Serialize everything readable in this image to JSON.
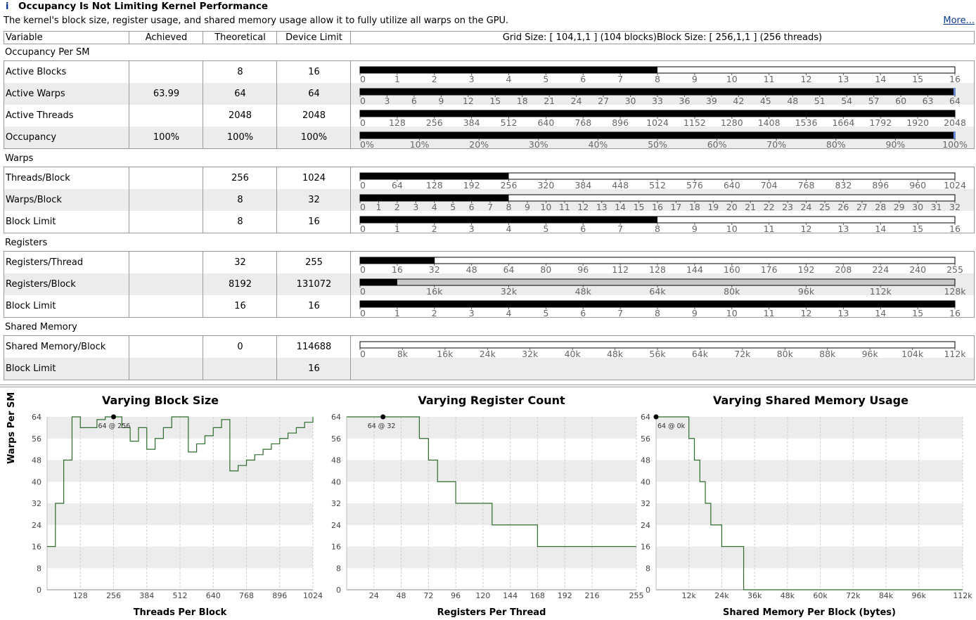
{
  "header": {
    "title": "Occupancy Is Not Limiting Kernel Performance",
    "description": "The kernel's block size, register usage, and shared memory usage allow it to fully utilize all warps on the GPU.",
    "more_link": "More...",
    "info_icon": "i"
  },
  "table_header": {
    "variable": "Variable",
    "achieved": "Achieved",
    "theoretical": "Theoretical",
    "device_limit": "Device Limit",
    "grid_info": "Grid Size: [ 104,1,1 ] (104 blocks)Block Size: [ 256,1,1 ] (256 threads)"
  },
  "sections": [
    {
      "title": "Occupancy Per SM",
      "rows": [
        {
          "variable": "Active Blocks",
          "achieved": "",
          "theoretical": "8",
          "device_limit": "16",
          "fill": 0.5,
          "bar_style": "plain",
          "ticks": [
            "0",
            "1",
            "2",
            "3",
            "4",
            "5",
            "6",
            "7",
            "8",
            "9",
            "10",
            "11",
            "12",
            "13",
            "14",
            "15",
            "16"
          ]
        },
        {
          "variable": "Active Warps",
          "achieved": "63.99",
          "theoretical": "64",
          "device_limit": "64",
          "fill": 1.0,
          "bar_style": "marker",
          "ticks": [
            "0",
            "3",
            "6",
            "9",
            "12",
            "15",
            "18",
            "21",
            "24",
            "27",
            "30",
            "33",
            "36",
            "39",
            "42",
            "45",
            "48",
            "51",
            "54",
            "57",
            "60",
            "63",
            "64"
          ]
        },
        {
          "variable": "Active Threads",
          "achieved": "",
          "theoretical": "2048",
          "device_limit": "2048",
          "fill": 1.0,
          "bar_style": "plain",
          "ticks": [
            "0",
            "128",
            "256",
            "384",
            "512",
            "640",
            "768",
            "896",
            "1024",
            "1152",
            "1280",
            "1408",
            "1536",
            "1664",
            "1792",
            "1920",
            "2048"
          ]
        },
        {
          "variable": "Occupancy",
          "achieved": "100%",
          "theoretical": "100%",
          "device_limit": "100%",
          "fill": 1.0,
          "bar_style": "marker",
          "ticks": [
            "0%",
            "10%",
            "20%",
            "30%",
            "40%",
            "50%",
            "60%",
            "70%",
            "80%",
            "90%",
            "100%"
          ]
        }
      ]
    },
    {
      "title": "Warps",
      "rows": [
        {
          "variable": "Threads/Block",
          "achieved": "",
          "theoretical": "256",
          "device_limit": "1024",
          "fill": 0.25,
          "bar_style": "plain",
          "ticks": [
            "0",
            "64",
            "128",
            "192",
            "256",
            "320",
            "384",
            "448",
            "512",
            "576",
            "640",
            "704",
            "768",
            "832",
            "896",
            "960",
            "1024"
          ]
        },
        {
          "variable": "Warps/Block",
          "achieved": "",
          "theoretical": "8",
          "device_limit": "32",
          "fill": 0.25,
          "bar_style": "plain",
          "ticks": [
            "0",
            "1",
            "2",
            "3",
            "4",
            "5",
            "6",
            "7",
            "8",
            "9",
            "10",
            "11",
            "12",
            "13",
            "14",
            "15",
            "16",
            "17",
            "18",
            "19",
            "20",
            "21",
            "22",
            "23",
            "24",
            "25",
            "26",
            "27",
            "28",
            "29",
            "30",
            "31",
            "32"
          ]
        },
        {
          "variable": "Block Limit",
          "achieved": "",
          "theoretical": "8",
          "device_limit": "16",
          "fill": 0.5,
          "bar_style": "plain",
          "ticks": [
            "0",
            "1",
            "2",
            "3",
            "4",
            "5",
            "6",
            "7",
            "8",
            "9",
            "10",
            "11",
            "12",
            "13",
            "14",
            "15",
            "16"
          ]
        }
      ]
    },
    {
      "title": "Registers",
      "rows": [
        {
          "variable": "Registers/Thread",
          "achieved": "",
          "theoretical": "32",
          "device_limit": "255",
          "fill": 0.1255,
          "bar_style": "plain",
          "ticks": [
            "0",
            "16",
            "32",
            "48",
            "64",
            "80",
            "96",
            "112",
            "128",
            "144",
            "160",
            "176",
            "192",
            "208",
            "224",
            "240",
            "255"
          ]
        },
        {
          "variable": "Registers/Block",
          "achieved": "",
          "theoretical": "8192",
          "device_limit": "131072",
          "fill": 0.0625,
          "bar_style": "grey",
          "ticks": [
            "0",
            "16k",
            "32k",
            "48k",
            "64k",
            "80k",
            "96k",
            "112k",
            "128k"
          ]
        },
        {
          "variable": "Block Limit",
          "achieved": "",
          "theoretical": "16",
          "device_limit": "16",
          "fill": 1.0,
          "bar_style": "plain",
          "ticks": [
            "0",
            "1",
            "2",
            "3",
            "4",
            "5",
            "6",
            "7",
            "8",
            "9",
            "10",
            "11",
            "12",
            "13",
            "14",
            "15",
            "16"
          ]
        }
      ]
    },
    {
      "title": "Shared Memory",
      "rows": [
        {
          "variable": "Shared Memory/Block",
          "achieved": "",
          "theoretical": "0",
          "device_limit": "114688",
          "fill": 0.0,
          "bar_style": "plain",
          "ticks": [
            "0",
            "8k",
            "16k",
            "24k",
            "32k",
            "40k",
            "48k",
            "56k",
            "64k",
            "72k",
            "80k",
            "88k",
            "96k",
            "104k",
            "112k"
          ]
        },
        {
          "variable": "Block Limit",
          "achieved": "",
          "theoretical": "",
          "device_limit": "16",
          "fill": null,
          "bar_style": "none",
          "ticks": []
        }
      ]
    }
  ],
  "chart_data": [
    {
      "type": "line",
      "title": "Varying Block Size",
      "xlabel": "Threads Per Block",
      "ylabel": "Warps Per SM",
      "xlim": [
        0,
        1024
      ],
      "ylim": [
        0,
        64
      ],
      "yticks": [
        "0",
        "8",
        "16",
        "24",
        "32",
        "40",
        "48",
        "56",
        "64"
      ],
      "xticks": [
        128,
        256,
        384,
        512,
        640,
        768,
        896,
        1024
      ],
      "xtick_labels": [
        "128",
        "256",
        "384",
        "512",
        "640",
        "768",
        "896",
        "1024"
      ],
      "annotation": "64 @ 256",
      "highlight": [
        256,
        64
      ],
      "x": [
        0,
        32,
        64,
        96,
        128,
        160,
        192,
        224,
        256,
        288,
        320,
        352,
        384,
        416,
        448,
        480,
        512,
        544,
        576,
        608,
        640,
        672,
        704,
        736,
        768,
        800,
        832,
        864,
        896,
        928,
        960,
        992,
        1024
      ],
      "y": [
        16,
        32,
        48,
        64,
        60,
        60,
        63,
        64,
        64,
        60,
        55,
        60,
        52,
        56,
        60,
        64,
        64,
        51,
        54,
        57,
        60,
        63,
        44,
        46,
        48,
        50,
        52,
        54,
        56,
        58,
        60,
        62,
        64
      ]
    },
    {
      "type": "line",
      "title": "Varying Register Count",
      "xlabel": "Registers Per Thread",
      "ylabel": "Warps Per SM",
      "xlim": [
        0,
        255
      ],
      "ylim": [
        0,
        64
      ],
      "yticks": [
        "0",
        "8",
        "16",
        "24",
        "32",
        "40",
        "48",
        "56",
        "64"
      ],
      "xticks": [
        24,
        48,
        72,
        96,
        120,
        144,
        168,
        192,
        216,
        255
      ],
      "xtick_labels": [
        "24",
        "48",
        "72",
        "96",
        "120",
        "144",
        "168",
        "192",
        "216",
        "255"
      ],
      "annotation": "64 @ 32",
      "highlight": [
        32,
        64
      ],
      "x": [
        0,
        64,
        72,
        80,
        96,
        128,
        168,
        255
      ],
      "y": [
        64,
        56,
        48,
        40,
        32,
        24,
        16,
        16
      ]
    },
    {
      "type": "line",
      "title": "Varying Shared Memory Usage",
      "xlabel": "Shared Memory Per Block (bytes)",
      "ylabel": "Warps Per SM",
      "xlim": [
        0,
        114688
      ],
      "ylim": [
        0,
        64
      ],
      "yticks": [
        "0",
        "8",
        "16",
        "24",
        "32",
        "40",
        "48",
        "56",
        "64"
      ],
      "xticks": [
        12288,
        24576,
        36864,
        49152,
        61440,
        73728,
        86016,
        98304,
        114688
      ],
      "xtick_labels": [
        "12k",
        "24k",
        "36k",
        "48k",
        "60k",
        "72k",
        "84k",
        "96k",
        "112k"
      ],
      "annotation": "64 @ 0k",
      "highlight": [
        0,
        64
      ],
      "x": [
        0,
        12288,
        14336,
        16384,
        18432,
        20480,
        24576,
        32768,
        49152,
        114688
      ],
      "y": [
        64,
        56,
        48,
        40,
        32,
        24,
        16,
        0,
        0,
        0
      ]
    }
  ],
  "colors": {
    "bar": "#000000",
    "marker": "#6a8ad8",
    "grey_bar": "#c8c8c8",
    "line": "#2e6b2e",
    "band": "#ececec"
  }
}
